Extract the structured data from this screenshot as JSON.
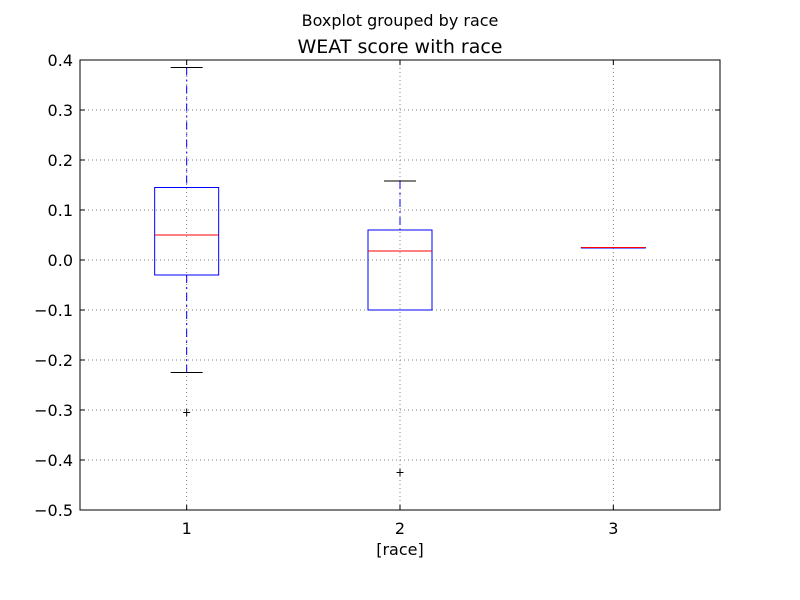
{
  "chart_data": {
    "type": "boxplot",
    "suptitle": "Boxplot grouped by race",
    "title": "WEAT score with race",
    "xlabel": "[race]",
    "ylabel": "",
    "ylim": [
      -0.5,
      0.4
    ],
    "yticks": [
      0.4,
      0.3,
      0.2,
      0.1,
      0.0,
      -0.1,
      -0.2,
      -0.3,
      -0.4,
      -0.5
    ],
    "ytick_labels": [
      "0.4",
      "0.3",
      "0.2",
      "0.1",
      "0.0",
      "−0.1",
      "−0.2",
      "−0.3",
      "−0.4",
      "−0.5"
    ],
    "categories": [
      "1",
      "2",
      "3"
    ],
    "grid": true,
    "colors": {
      "box": "#0000ff",
      "median": "#ff0000",
      "whisker": "#0000ff",
      "cap": "#000000",
      "outlier": "#000000",
      "grid": "#808080",
      "frame": "#000000"
    },
    "boxes": [
      {
        "category": "1",
        "whisker_low": -0.225,
        "q1": -0.03,
        "median": 0.05,
        "q3": 0.145,
        "whisker_high": 0.385,
        "outliers": [
          -0.305
        ]
      },
      {
        "category": "2",
        "whisker_low": -0.1,
        "q1": -0.1,
        "median": 0.018,
        "q3": 0.06,
        "whisker_high": 0.158,
        "outliers": [
          -0.425
        ]
      },
      {
        "category": "3",
        "whisker_low": 0.025,
        "q1": 0.025,
        "median": 0.025,
        "q3": 0.025,
        "whisker_high": 0.025,
        "outliers": []
      }
    ]
  }
}
